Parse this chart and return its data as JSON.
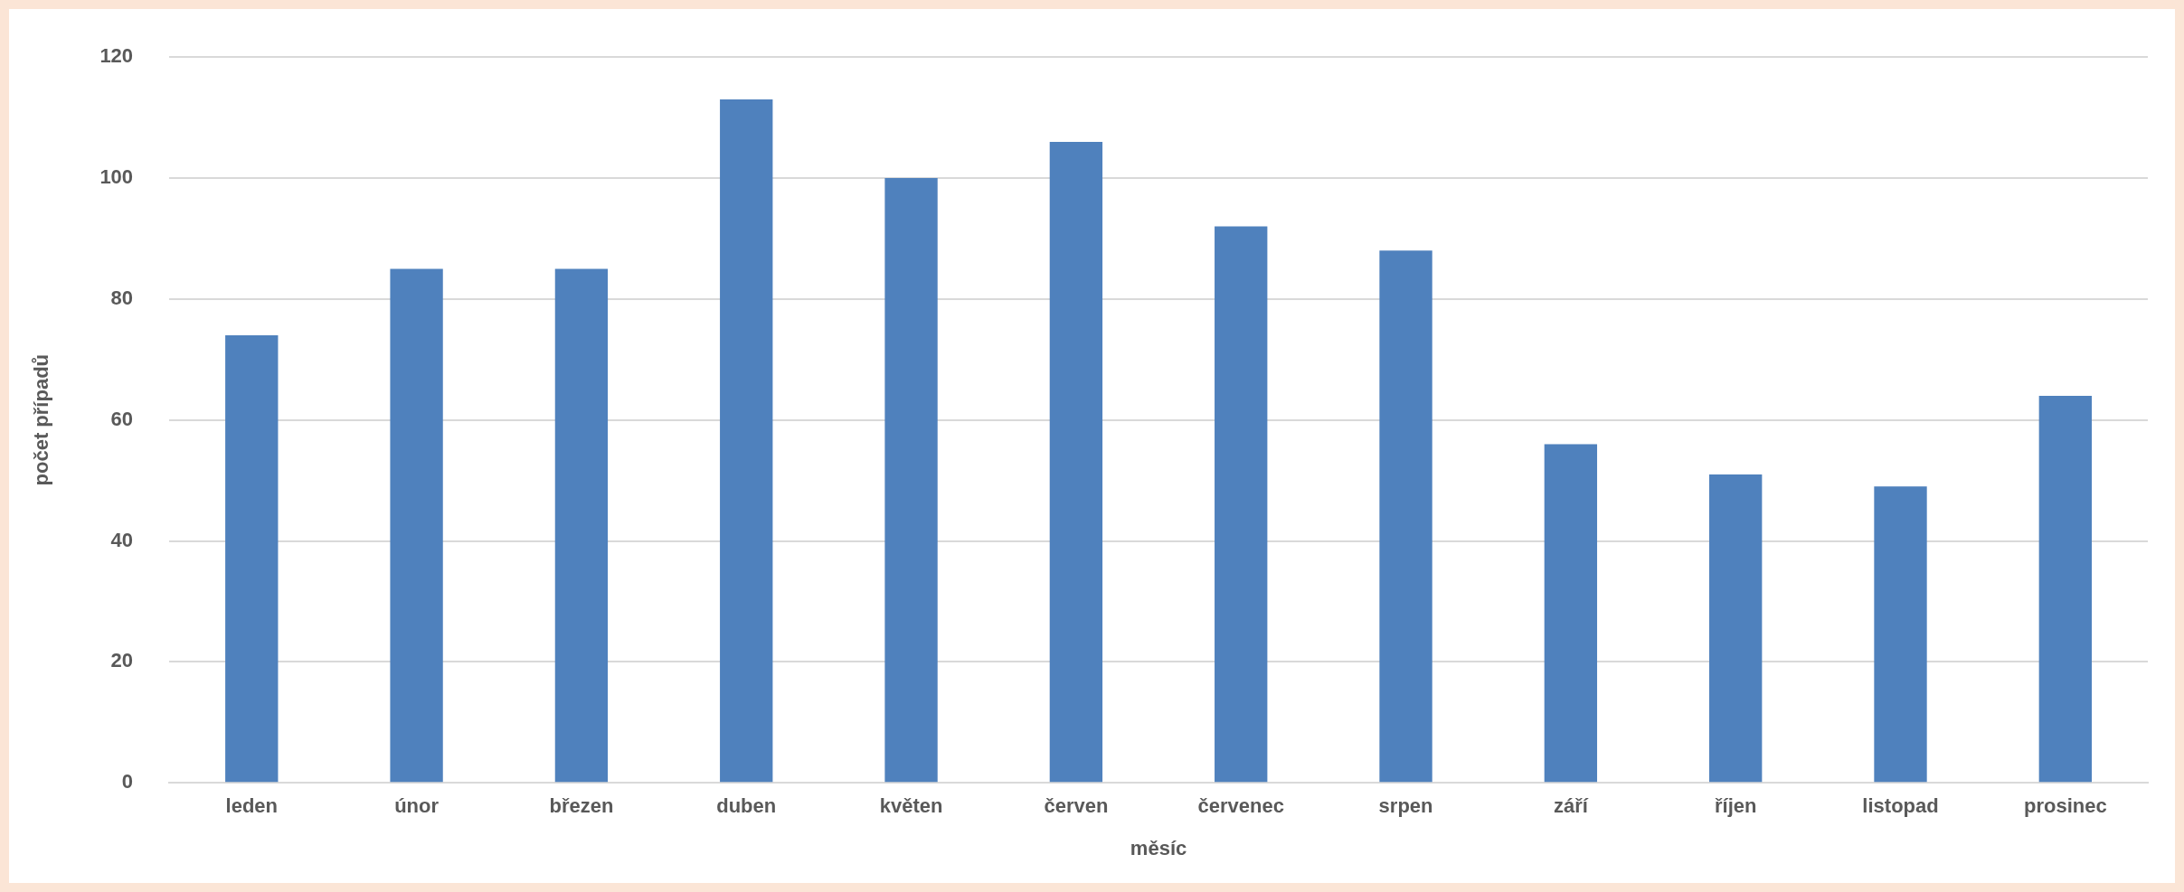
{
  "chart_data": {
    "type": "bar",
    "xlabel": "měsíc",
    "ylabel": "počet případů",
    "categories": [
      "leden",
      "únor",
      "březen",
      "duben",
      "květen",
      "červen",
      "červenec",
      "srpen",
      "září",
      "říjen",
      "listopad",
      "prosinec"
    ],
    "values": [
      74,
      85,
      85,
      113,
      100,
      106,
      92,
      88,
      56,
      51,
      49,
      64
    ],
    "color": "#4f81bd",
    "ylim": [
      0,
      120
    ],
    "yticks": [
      0,
      20,
      40,
      60,
      80,
      100,
      120
    ],
    "grid": "y",
    "legend": false
  }
}
